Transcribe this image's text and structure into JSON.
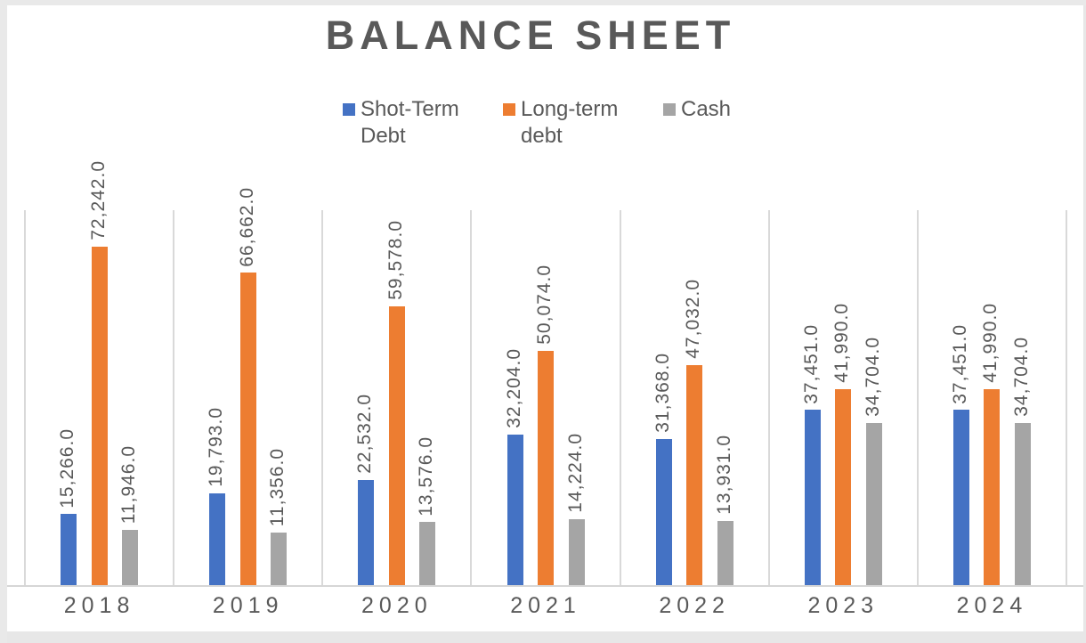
{
  "chart": {
    "edge_color": "#e9e9e9",
    "grid_color": "#d9d9d9",
    "text_color": "#595959"
  },
  "chart_data": {
    "type": "bar",
    "title": "BALANCE SHEET",
    "categories": [
      "2018",
      "2019",
      "2020",
      "2021",
      "2022",
      "2023",
      "2024"
    ],
    "series": [
      {
        "name": "Shot-Term Debt",
        "color": "#4472C4",
        "values": [
          15266,
          19793,
          22532,
          32204,
          31368,
          37451,
          37451
        ],
        "labels": [
          "15,266.0",
          "19,793.0",
          "22,532.0",
          "32,204.0",
          "31,368.0",
          "37,451.0",
          "37,451.0"
        ]
      },
      {
        "name": "Long-term debt",
        "color": "#ED7D31",
        "values": [
          72242,
          66662,
          59578,
          50074,
          47032,
          41990,
          41990
        ],
        "labels": [
          "72,242.0",
          "66,662.0",
          "59,578.0",
          "50,074.0",
          "47,032.0",
          "41,990.0",
          "41,990.0"
        ]
      },
      {
        "name": "Cash",
        "color": "#A5A5A5",
        "values": [
          11946,
          11356,
          13576,
          14224,
          13931,
          34704,
          34704
        ],
        "labels": [
          "11,946.0",
          "11,356.0",
          "13,576.0",
          "14,224.0",
          "13,931.0",
          "34,704.0",
          "34,704.0"
        ]
      }
    ],
    "ylim": [
      0,
      80000
    ],
    "xlabel": "",
    "ylabel": "",
    "grid": "vertical category separators only, no horizontal gridlines, no y-axis labels",
    "legend_position": "top",
    "data_labels": "each bar labeled with its value, rotated 90° counter-clockwise above the bar, format #,##0.0"
  }
}
